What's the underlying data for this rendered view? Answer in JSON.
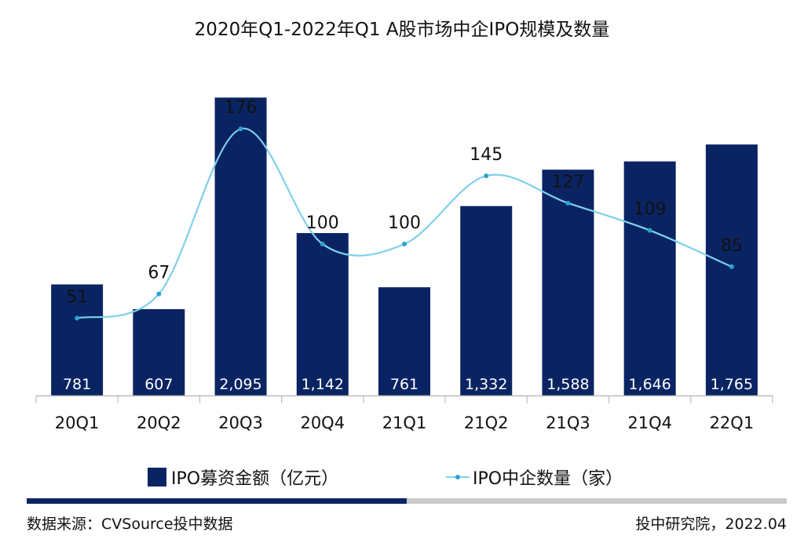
{
  "title": "2020年Q1-2022年Q1 A股市场中企IPO规模及数量",
  "legend": {
    "bar_label": "IPO募资金额（亿元）",
    "line_label": "IPO中企数量（家）"
  },
  "footer": {
    "source": "数据来源：CVSource投中数据",
    "credit": "投中研究院，2022.04"
  },
  "colors": {
    "bar": "#0a2463",
    "line": "#7fd0eb",
    "marker": "#2aa3cf",
    "axis": "#bdbdbd"
  },
  "chart_data": {
    "type": "bar+line",
    "categories": [
      "20Q1",
      "20Q2",
      "20Q3",
      "20Q4",
      "21Q1",
      "21Q2",
      "21Q3",
      "21Q4",
      "22Q1"
    ],
    "series": [
      {
        "name": "IPO募资金额（亿元）",
        "type": "bar",
        "values": [
          781,
          607,
          2095,
          1142,
          761,
          1332,
          1588,
          1646,
          1765
        ],
        "labels": [
          "781",
          "607",
          "2,095",
          "1,142",
          "761",
          "1,332",
          "1,588",
          "1,646",
          "1,765"
        ]
      },
      {
        "name": "IPO中企数量（家）",
        "type": "line",
        "values": [
          51,
          67,
          176,
          100,
          100,
          145,
          127,
          109,
          85
        ],
        "labels": [
          "51",
          "67",
          "176",
          "100",
          "100",
          "145",
          "127",
          "109",
          "85"
        ]
      }
    ],
    "bar_ylim": [
      0,
      2450
    ],
    "line_ylim": [
      0,
      230
    ],
    "grid": false,
    "legend_position": "bottom"
  }
}
